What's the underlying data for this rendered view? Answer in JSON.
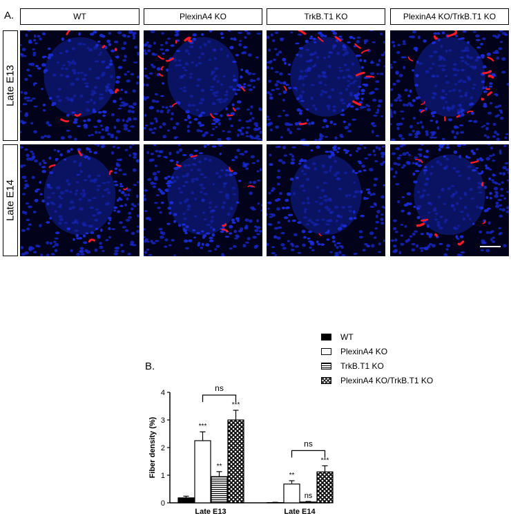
{
  "figure": {
    "panel_a_label": "A.",
    "panel_b_label": "B.",
    "columns": [
      "WT",
      "PlexinA4 KO",
      "TrkB.T1 KO",
      "PlexinA4 KO/TrkB.T1 KO"
    ],
    "rows": [
      "Late E13",
      "Late E14"
    ]
  },
  "chart_data": {
    "type": "bar",
    "categories": [
      "Late E13",
      "Late E14"
    ],
    "series": [
      {
        "name": "WT",
        "values": [
          0.18,
          0.01
        ],
        "errors": [
          0.06,
          0.01
        ],
        "fill": "solid-black",
        "sig": [
          "",
          ""
        ]
      },
      {
        "name": "PlexinA4 KO",
        "values": [
          2.25,
          0.68
        ],
        "errors": [
          0.32,
          0.12
        ],
        "fill": "white",
        "sig": [
          "***",
          "**"
        ]
      },
      {
        "name": "TrkB.T1 KO",
        "values": [
          0.95,
          0.03
        ],
        "errors": [
          0.18,
          0.02
        ],
        "fill": "horizontal-stripes",
        "sig": [
          "**",
          "ns"
        ]
      },
      {
        "name": "PlexinA4 KO/TrkB.T1 KO",
        "values": [
          3.0,
          1.12
        ],
        "errors": [
          0.35,
          0.22
        ],
        "fill": "crosshatch",
        "sig": [
          "***",
          "***"
        ]
      }
    ],
    "comparisons": [
      {
        "category": "Late E13",
        "between": [
          "PlexinA4 KO",
          "PlexinA4 KO/TrkB.T1 KO"
        ],
        "label": "ns"
      },
      {
        "category": "Late E14",
        "between": [
          "PlexinA4 KO",
          "PlexinA4 KO/TrkB.T1 KO"
        ],
        "label": "ns"
      }
    ],
    "ylabel": "Fiber density (%)",
    "ylim": [
      0,
      4
    ],
    "yticks": [
      "0",
      "1",
      "2",
      "3",
      "4"
    ],
    "legend_position": "top-right",
    "colors": {
      "nuclei": "#1a2bd6",
      "fibers": "#ff1a2a",
      "background": "#000000"
    }
  }
}
